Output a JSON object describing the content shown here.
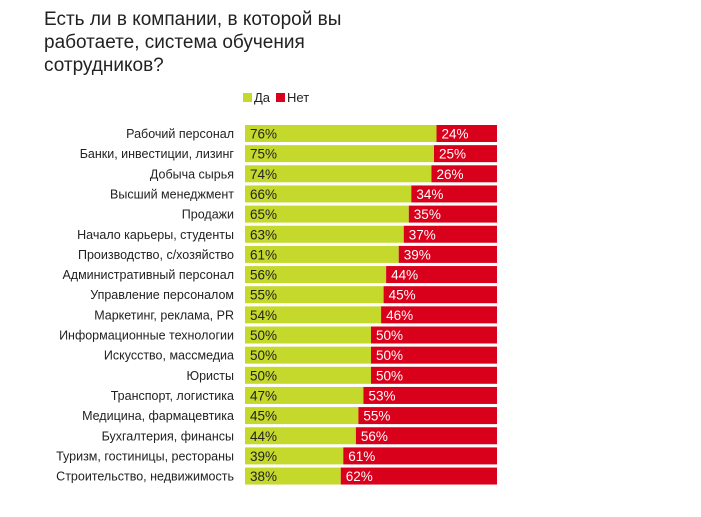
{
  "chart_data": {
    "type": "bar",
    "orientation": "horizontal",
    "stacked": true,
    "title": "Есть ли в компании, в которой вы работаете, система обучения сотрудников?",
    "legend_position": "top",
    "grid": false,
    "xlim": [
      0,
      100
    ],
    "categories": [
      "Рабочий персонал",
      "Банки, инвестиции, лизинг",
      "Добыча сырья",
      "Высший менеджмент",
      "Продажи",
      "Начало карьеры, студенты",
      "Производство, с/хозяйство",
      "Административный персонал",
      "Управление персоналом",
      "Маркетинг, реклама, PR",
      "Информационные технологии",
      "Искусство, массмедиа",
      "Юристы",
      "Транспорт, логистика",
      "Медицина, фармацевтика",
      "Бухгалтерия, финансы",
      "Туризм, гостиницы, рестораны",
      "Строительство, недвижимость"
    ],
    "series": [
      {
        "name": "Да",
        "color": "#c5d92d",
        "values": [
          76,
          75,
          74,
          66,
          65,
          63,
          61,
          56,
          55,
          54,
          50,
          50,
          50,
          47,
          45,
          44,
          39,
          38
        ]
      },
      {
        "name": "Нет",
        "color": "#d9001b",
        "values": [
          24,
          25,
          26,
          34,
          35,
          37,
          39,
          44,
          45,
          46,
          50,
          50,
          50,
          53,
          55,
          56,
          61,
          62
        ]
      }
    ],
    "value_suffix": "%"
  }
}
